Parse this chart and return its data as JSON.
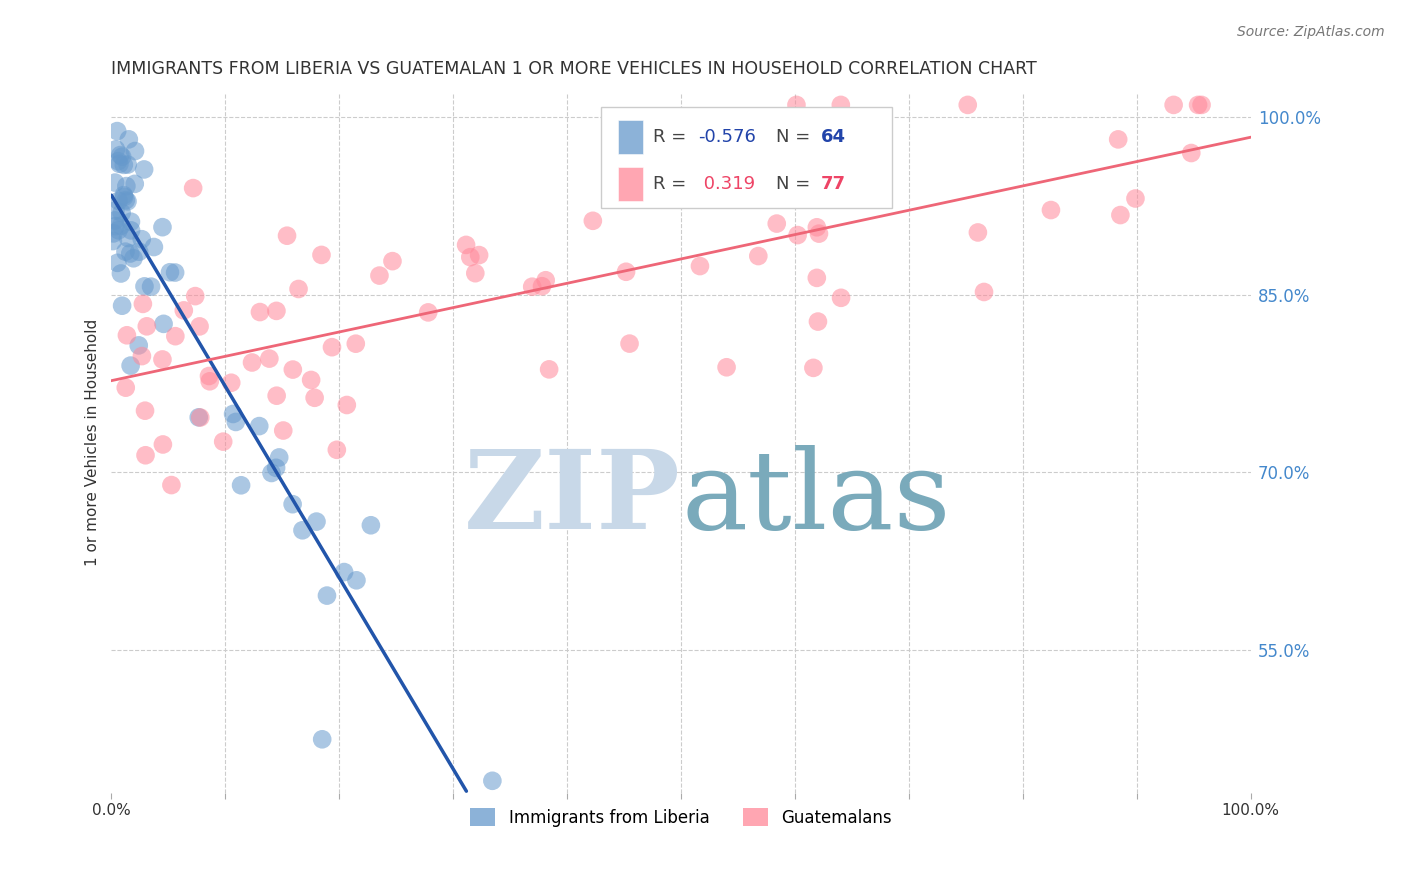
{
  "title": "IMMIGRANTS FROM LIBERIA VS GUATEMALAN 1 OR MORE VEHICLES IN HOUSEHOLD CORRELATION CHART",
  "source": "Source: ZipAtlas.com",
  "ylabel": "1 or more Vehicles in Household",
  "ylabel_right_ticks": [
    "100.0%",
    "85.0%",
    "70.0%",
    "55.0%"
  ],
  "ylabel_right_vals": [
    1.0,
    0.85,
    0.7,
    0.55
  ],
  "xlim": [
    0.0,
    1.0
  ],
  "ylim": [
    0.43,
    1.02
  ],
  "legend_blue_r": "-0.576",
  "legend_blue_n": "64",
  "legend_pink_r": "0.319",
  "legend_pink_n": "77",
  "legend_label_blue": "Immigrants from Liberia",
  "legend_label_pink": "Guatemalans",
  "blue_color": "#6699CC",
  "pink_color": "#FF8899",
  "blue_line_color": "#2255AA",
  "pink_line_color": "#EE6677",
  "watermark_zip": "ZIP",
  "watermark_atlas": "atlas",
  "watermark_color_zip": "#c8d8e8",
  "watermark_color_atlas": "#7aaabb",
  "title_color": "#333333",
  "right_axis_color": "#4488CC"
}
